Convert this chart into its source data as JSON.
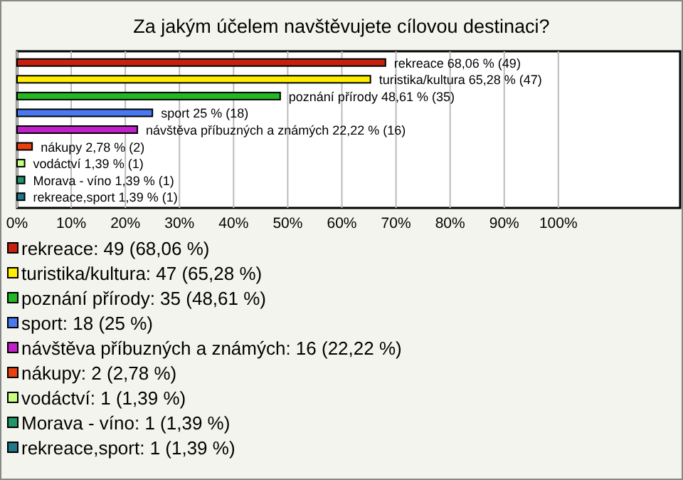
{
  "chart_data": {
    "type": "bar",
    "orientation": "horizontal",
    "title": "Za jakým účelem navštěvujete cílovou destinaci?",
    "categories": [
      "rekreace",
      "turistika/kultura",
      "poznání přírody",
      "sport",
      "návštěva příbuzných a známých",
      "nákupy",
      "vodáctví",
      "Morava - víno",
      "rekreace,sport"
    ],
    "values": [
      68.06,
      65.28,
      48.61,
      25,
      22.22,
      2.78,
      1.39,
      1.39,
      1.39
    ],
    "value_labels": [
      "68,06 % (49)",
      "65,28 % (47)",
      "48,61 % (35)",
      "25 % (18)",
      "22,22 % (16)",
      "2,78 % (2)",
      "1,39 % (1)",
      "1,39 % (1)",
      "1,39 % (1)"
    ],
    "colors": [
      "#c8200e",
      "#ffee00",
      "#22b822",
      "#4a78f0",
      "#c020c8",
      "#e84010",
      "#c8ff80",
      "#20966a",
      "#207888"
    ],
    "xlim": [
      0,
      122.5
    ],
    "xticks": [
      {
        "value": 0,
        "label": "0%"
      },
      {
        "value": 10,
        "label": "10%"
      },
      {
        "value": 20,
        "label": "20%"
      },
      {
        "value": 30,
        "label": "30%"
      },
      {
        "value": 40,
        "label": "40%"
      },
      {
        "value": 50,
        "label": "50%"
      },
      {
        "value": 60,
        "label": "60%"
      },
      {
        "value": 70,
        "label": "70%"
      },
      {
        "value": 80,
        "label": "80%"
      },
      {
        "value": 90,
        "label": "90%"
      },
      {
        "value": 100,
        "label": "100%"
      }
    ],
    "grid": "x",
    "annotations": [
      "rekreace: 49 (68,06 %)",
      "turistika/kultura: 47 (65,28 %)",
      "poznání přírody: 35 (48,61 %)",
      "sport: 18 (25 %)",
      "návštěva příbuzných a známých: 16 (22,22 %)",
      "nákupy: 2 (2,78 %)",
      "vodáctví: 1 (1,39 %)",
      "Morava - víno: 1 (1,39 %)",
      "rekreace,sport: 1 (1,39 %)"
    ]
  }
}
